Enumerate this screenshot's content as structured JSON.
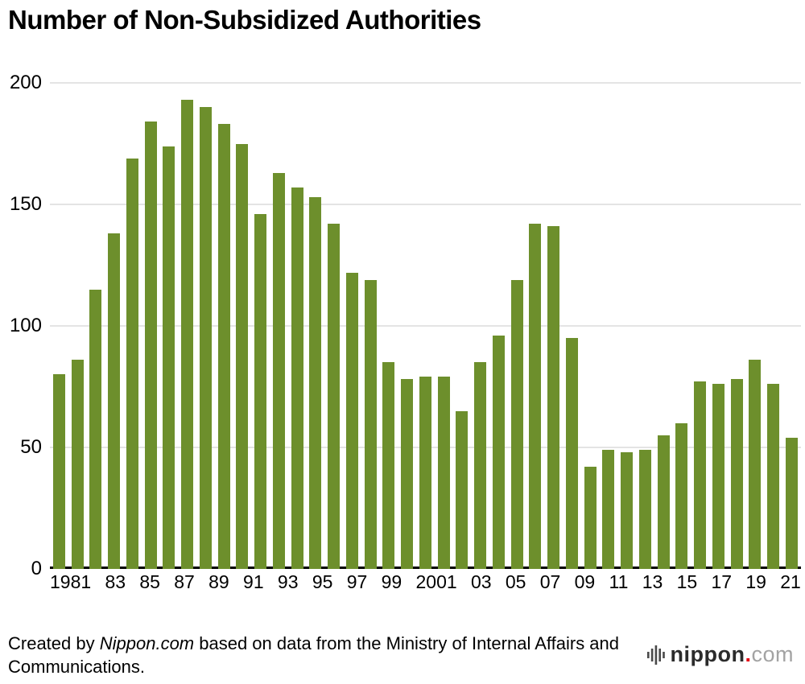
{
  "title": "Number of Non-Subsidized Authorities",
  "footer": {
    "prefix": "Created by ",
    "source": "Nippon.com",
    "suffix": " based on data from the Ministry of Internal Affairs and Communications."
  },
  "logo": {
    "name": "nippon",
    "dot": ".",
    "tld": "com"
  },
  "colors": {
    "bar": "#6d8f2c",
    "grid": "#c9c9c9",
    "axis": "#000000",
    "logo_dot": "#e60012"
  },
  "chart_data": {
    "type": "bar",
    "title": "Number of Non-Subsidized Authorities",
    "xlabel": "",
    "ylabel": "",
    "ylim": [
      0,
      200
    ],
    "yticks": [
      0,
      50,
      100,
      150,
      200
    ],
    "grid": "horizontal",
    "legend": "none",
    "x": [
      1981,
      1982,
      1983,
      1984,
      1985,
      1986,
      1987,
      1988,
      1989,
      1990,
      1991,
      1992,
      1993,
      1994,
      1995,
      1996,
      1997,
      1998,
      1999,
      2000,
      2001,
      2002,
      2003,
      2004,
      2005,
      2006,
      2007,
      2008,
      2009,
      2010,
      2011,
      2012,
      2013,
      2014,
      2015,
      2016,
      2017,
      2018,
      2019,
      2020,
      2021
    ],
    "tick_labels": [
      "1981",
      "",
      "83",
      "",
      "85",
      "",
      "87",
      "",
      "89",
      "",
      "91",
      "",
      "93",
      "",
      "95",
      "",
      "97",
      "",
      "99",
      "",
      "2001",
      "",
      "03",
      "",
      "05",
      "",
      "07",
      "",
      "09",
      "",
      "11",
      "",
      "13",
      "",
      "15",
      "",
      "17",
      "",
      "19",
      "",
      "21"
    ],
    "values": [
      80,
      86,
      115,
      138,
      169,
      184,
      174,
      193,
      190,
      183,
      175,
      146,
      163,
      157,
      153,
      142,
      122,
      119,
      85,
      78,
      79,
      79,
      65,
      85,
      96,
      119,
      142,
      141,
      95,
      42,
      49,
      48,
      49,
      55,
      60,
      77,
      76,
      78,
      86,
      76,
      54
    ]
  }
}
